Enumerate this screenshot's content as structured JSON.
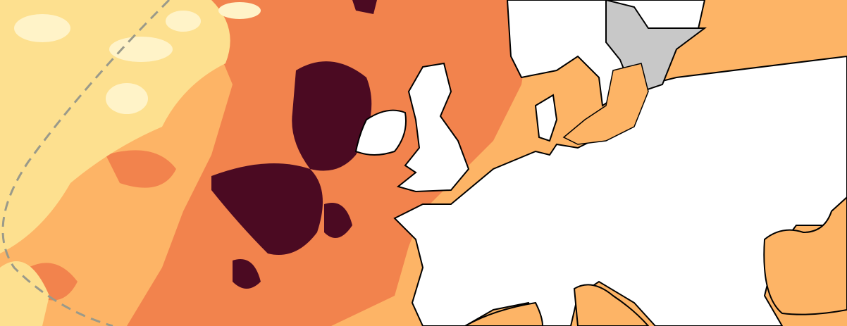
{
  "map": {
    "palette": {
      "very_low": "#fff3c8",
      "low": "#fde08f",
      "medium": "#fdb466",
      "high": "#f2834d",
      "very_high": "#4b0a22"
    },
    "land_color": "#ffffff",
    "inland_sea_color": "#c8c8c8",
    "coastline_color": "#000000",
    "boundary_line_color": "#9a9a8a"
  }
}
